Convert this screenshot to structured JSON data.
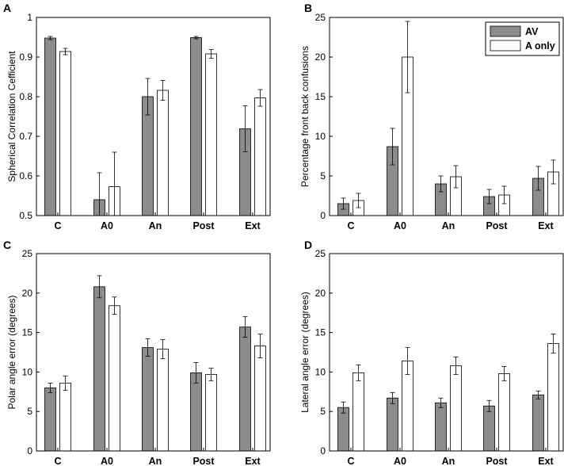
{
  "colors": {
    "av": "#8c8c8c",
    "a_only": "#ffffff",
    "edge": "#000000"
  },
  "chart_data": [
    {
      "type": "bar",
      "panel": "A",
      "ylabel": "Spherical Correlation Cefficient",
      "ylim": [
        0.5,
        1
      ],
      "yticks": [
        0.5,
        0.6,
        0.7,
        0.8,
        0.9,
        1
      ],
      "ytick_labels": [
        "0.5",
        "0.6",
        "0.7",
        "0.8",
        "0.9",
        "1"
      ],
      "categories": [
        "C",
        "A0",
        "An",
        "Post",
        "Ext"
      ],
      "series": [
        {
          "name": "AV",
          "values": [
            0.948,
            0.54,
            0.8,
            0.949,
            0.719
          ],
          "errors": [
            0.004,
            0.068,
            0.046,
            0.003,
            0.058
          ]
        },
        {
          "name": "A only",
          "values": [
            0.914,
            0.573,
            0.816,
            0.908,
            0.797
          ],
          "errors": [
            0.008,
            0.087,
            0.025,
            0.011,
            0.021
          ]
        }
      ]
    },
    {
      "type": "bar",
      "panel": "B",
      "ylabel": "Percentage front back confusions",
      "ylim": [
        0,
        25
      ],
      "yticks": [
        0,
        5,
        10,
        15,
        20,
        25
      ],
      "ytick_labels": [
        "0",
        "5",
        "10",
        "15",
        "20",
        "25"
      ],
      "categories": [
        "C",
        "A0",
        "An",
        "Post",
        "Ext"
      ],
      "legend": {
        "position": "top-right",
        "entries": [
          "AV",
          "A only"
        ]
      },
      "series": [
        {
          "name": "AV",
          "values": [
            1.5,
            8.7,
            4.0,
            2.4,
            4.7
          ],
          "errors": [
            0.7,
            2.3,
            1.0,
            0.9,
            1.5
          ]
        },
        {
          "name": "A only",
          "values": [
            1.9,
            20.0,
            4.9,
            2.6,
            5.5
          ],
          "errors": [
            0.9,
            4.5,
            1.4,
            1.1,
            1.5
          ]
        }
      ]
    },
    {
      "type": "bar",
      "panel": "C",
      "ylabel": "Polar angle error (degrees)",
      "ylim": [
        0,
        25
      ],
      "yticks": [
        0,
        5,
        10,
        15,
        20,
        25
      ],
      "ytick_labels": [
        "0",
        "5",
        "10",
        "15",
        "20",
        "25"
      ],
      "categories": [
        "C",
        "A0",
        "An",
        "Post",
        "Ext"
      ],
      "series": [
        {
          "name": "AV",
          "values": [
            8.0,
            20.8,
            13.1,
            9.9,
            15.7
          ],
          "errors": [
            0.6,
            1.4,
            1.1,
            1.3,
            1.3
          ]
        },
        {
          "name": "A only",
          "values": [
            8.6,
            18.4,
            12.9,
            9.7,
            13.3
          ],
          "errors": [
            0.9,
            1.1,
            1.2,
            0.8,
            1.5
          ]
        }
      ]
    },
    {
      "type": "bar",
      "panel": "D",
      "ylabel": "Lateral angle error (degrees)",
      "ylim": [
        0,
        25
      ],
      "yticks": [
        0,
        5,
        10,
        15,
        20,
        25
      ],
      "ytick_labels": [
        "0",
        "5",
        "10",
        "15",
        "20",
        "25"
      ],
      "categories": [
        "C",
        "A0",
        "An",
        "Post",
        "Ext"
      ],
      "series": [
        {
          "name": "AV",
          "values": [
            5.5,
            6.7,
            6.1,
            5.7,
            7.1
          ],
          "errors": [
            0.7,
            0.7,
            0.6,
            0.7,
            0.5
          ]
        },
        {
          "name": "A only",
          "values": [
            9.9,
            11.4,
            10.8,
            9.8,
            13.6
          ],
          "errors": [
            1.0,
            1.7,
            1.1,
            0.9,
            1.2
          ]
        }
      ]
    }
  ]
}
